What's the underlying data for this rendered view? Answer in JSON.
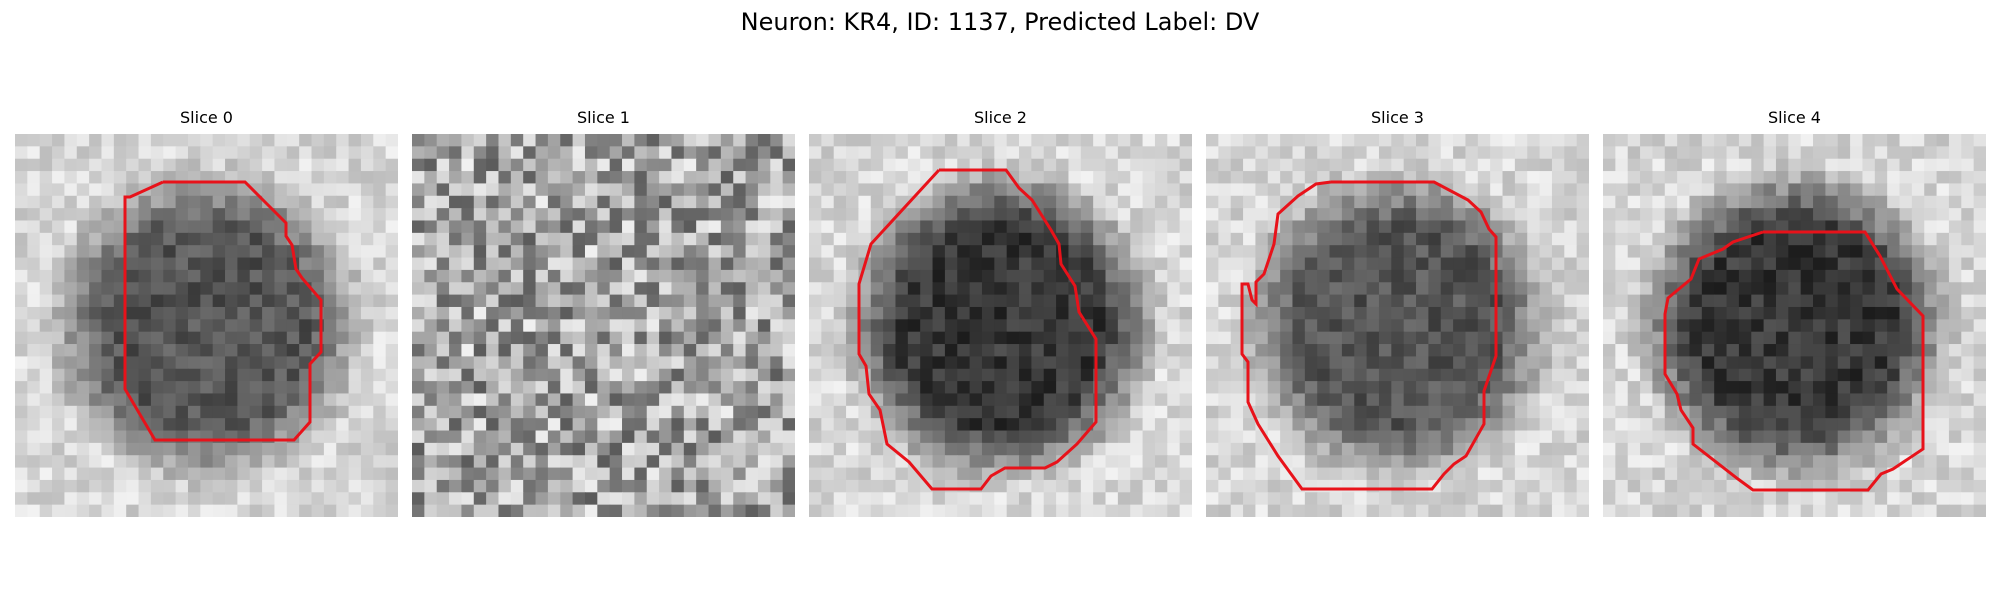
{
  "figure": {
    "title": "Neuron: KR4, ID: 1137, Predicted Label: DV"
  },
  "panels": [
    {
      "title": "Slice 0",
      "image": "Grayscale microscopy patch of a neuron cell body with dark nucleus; red segmentation contour outlines the cell",
      "texture": "center-mid"
    },
    {
      "title": "Slice 1",
      "image": "Noisy grayscale microscopy patch with no clear cell; no contour",
      "texture": "noise"
    },
    {
      "title": "Slice 2",
      "image": "Grayscale microscopy patch with large dark round cell body; red segmentation contour",
      "texture": "center-dark"
    },
    {
      "title": "Slice 3",
      "image": "Grayscale microscopy patch with dark speckled cell body; red segmentation contour",
      "texture": "center-mid"
    },
    {
      "title": "Slice 4",
      "image": "Grayscale microscopy patch with cell body and dark process extending upward; red segmentation contour",
      "texture": "center-dark"
    }
  ],
  "contour": {
    "color": "#e8121a"
  }
}
